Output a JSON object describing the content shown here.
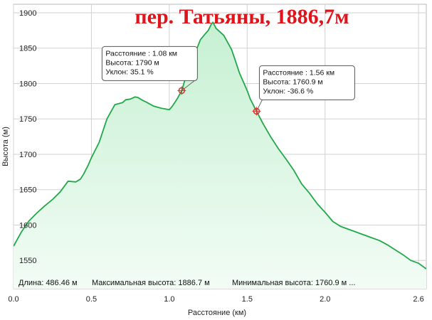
{
  "title": "пер. Татьяны, 1886,7м",
  "stats": {
    "length": "Длина: 486.46 м",
    "max": "Максимальная высота: 1886.7 м",
    "min": "Минимальная высота: 1760.9 м ..."
  },
  "tooltips": [
    {
      "distance": "Расстояние : 1.08 км",
      "elevation": "Высота: 1790 м",
      "slope": "Уклон: 35.1 %",
      "x": 1.08,
      "y": 1790
    },
    {
      "distance": "Расстояние : 1.56 км",
      "elevation": "Высота: 1760.9 м",
      "slope": "Уклон: -36.6 %",
      "x": 1.56,
      "y": 1760.9
    }
  ],
  "colors": {
    "line": "#22a84a",
    "fill_top": "#c6f0d2",
    "fill_bottom": "#f2fcf5",
    "title": "#e0141b",
    "marker": "#e03030"
  },
  "chart_data": {
    "type": "area",
    "xlabel": "Расстояние  (км)",
    "ylabel": "Высота (м)",
    "xlim": [
      0,
      2.65
    ],
    "ylim": [
      1510,
      1912
    ],
    "xticks": [
      "0.0",
      "0.5",
      "1.0",
      "1.5",
      "2.0",
      "2.6"
    ],
    "xtick_values": [
      0,
      0.5,
      1.0,
      1.5,
      2.0,
      2.6
    ],
    "yticks": [
      "1550",
      "1600",
      "1650",
      "1700",
      "1750",
      "1800",
      "1850",
      "1900"
    ],
    "ytick_values": [
      1550,
      1600,
      1650,
      1700,
      1750,
      1800,
      1850,
      1900
    ],
    "grid": true,
    "series": [
      {
        "x": [
          0.0,
          0.05,
          0.1,
          0.15,
          0.2,
          0.25,
          0.3,
          0.35,
          0.4,
          0.43,
          0.45,
          0.48,
          0.5,
          0.55,
          0.6,
          0.65,
          0.7,
          0.72,
          0.75,
          0.78,
          0.8,
          0.83,
          0.85,
          0.9,
          0.95,
          1.0,
          1.02,
          1.05,
          1.08,
          1.1,
          1.12,
          1.15,
          1.18,
          1.2,
          1.23,
          1.25,
          1.27,
          1.28,
          1.3,
          1.33,
          1.35,
          1.38,
          1.4,
          1.42,
          1.45,
          1.5,
          1.52,
          1.56,
          1.6,
          1.65,
          1.7,
          1.75,
          1.8,
          1.85,
          1.9,
          1.95,
          2.0,
          2.05,
          2.1,
          2.15,
          2.2,
          2.25,
          2.3,
          2.35,
          2.4,
          2.45,
          2.5,
          2.55,
          2.6,
          2.65
        ],
        "y": [
          1570,
          1590,
          1606,
          1617,
          1627,
          1636,
          1647,
          1662,
          1661,
          1665,
          1672,
          1685,
          1695,
          1717,
          1750,
          1770,
          1773,
          1777,
          1778,
          1781,
          1780,
          1776,
          1774,
          1768,
          1765,
          1763,
          1768,
          1778,
          1790,
          1805,
          1818,
          1838,
          1851,
          1862,
          1870,
          1875,
          1884,
          1886.7,
          1878,
          1872,
          1868,
          1856,
          1848,
          1835,
          1815,
          1790,
          1778,
          1760.9,
          1744,
          1725,
          1708,
          1693,
          1677,
          1658,
          1645,
          1630,
          1618,
          1605,
          1598,
          1594,
          1590,
          1586,
          1582,
          1578,
          1572,
          1565,
          1558,
          1550,
          1546,
          1538
        ]
      }
    ]
  }
}
